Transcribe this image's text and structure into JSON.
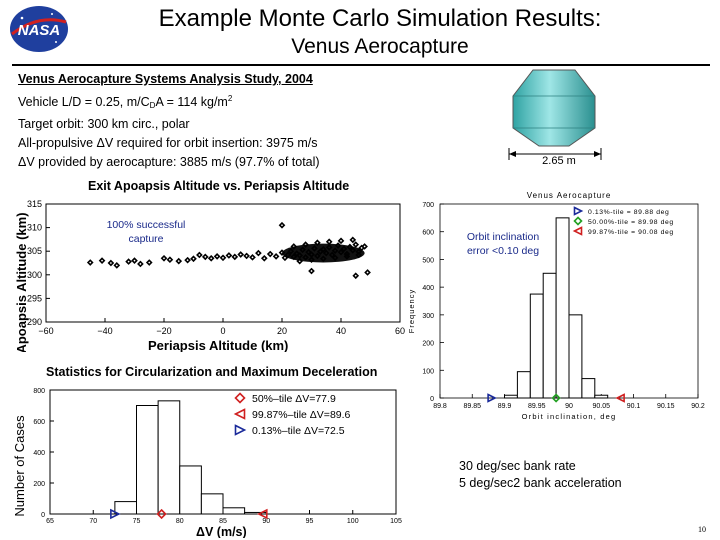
{
  "slide": {
    "title": "Example Monte Carlo Simulation Results:",
    "subtitle": "Venus Aerocapture",
    "logo_text": "NASA",
    "page_number": "10"
  },
  "study": {
    "heading": "Venus Aerocapture Systems Analysis Study, 2004",
    "line1_prefix": "Vehicle L/D = 0.25, m/C",
    "line1_sub": "D",
    "line1_mid": "A = 114 kg/m",
    "line1_sup": "2",
    "line2": "Target orbit: 300 km circ., polar",
    "line3": "All-propulsive ΔV required for orbit insertion: 3975 m/s",
    "line4": "ΔV provided by aerocapture: 3885 m/s (97.7% of total)"
  },
  "vehicle": {
    "dimension_label": "2.65 m"
  },
  "bank_note": {
    "line1": "30 deg/sec bank rate",
    "line2": "5 deg/sec2 bank acceleration"
  },
  "chart_data": [
    {
      "type": "scatter",
      "title": "Exit Apoapsis Altitude vs. Periapsis Altitude",
      "xlabel": "Periapsis Altitude (km)",
      "ylabel": "Apoapsis Altitude (km)",
      "xlim": [
        -60,
        60
      ],
      "ylim": [
        290,
        315
      ],
      "xticks": [
        "−60",
        "−40",
        "−20",
        "0",
        "20",
        "40",
        "60"
      ],
      "yticks": [
        "290",
        "295",
        "300",
        "305",
        "310",
        "315"
      ],
      "annotation": "100% successful capture",
      "points": [
        [
          -38,
          302.5
        ],
        [
          -36,
          302
        ],
        [
          -32,
          302.8
        ],
        [
          -30,
          303
        ],
        [
          -28,
          302.3
        ],
        [
          -25,
          302.6
        ],
        [
          -20,
          303.5
        ],
        [
          -18,
          303.2
        ],
        [
          -15,
          302.9
        ],
        [
          -12,
          303.1
        ],
        [
          -10,
          303.4
        ],
        [
          -8,
          304.2
        ],
        [
          -6,
          303.8
        ],
        [
          -4,
          303.5
        ],
        [
          -2,
          303.9
        ],
        [
          0,
          303.6
        ],
        [
          2,
          304.1
        ],
        [
          4,
          303.8
        ],
        [
          6,
          304.3
        ],
        [
          8,
          304.0
        ],
        [
          10,
          303.7
        ],
        [
          12,
          304.6
        ],
        [
          14,
          303.5
        ],
        [
          16,
          304.4
        ],
        [
          18,
          303.9
        ],
        [
          20,
          304.7
        ],
        [
          21,
          303.6
        ],
        [
          22,
          304.2
        ],
        [
          23,
          305.0
        ],
        [
          24,
          303.8
        ],
        [
          25,
          304.5
        ],
        [
          26,
          304.1
        ],
        [
          27,
          305.3
        ],
        [
          28,
          303.7
        ],
        [
          29,
          304.8
        ],
        [
          30,
          304.3
        ],
        [
          31,
          305.6
        ],
        [
          32,
          304.0
        ],
        [
          33,
          304.9
        ],
        [
          34,
          305.4
        ],
        [
          35,
          304.6
        ],
        [
          36,
          305.8
        ],
        [
          37,
          304.2
        ],
        [
          38,
          305.1
        ],
        [
          39,
          306.2
        ],
        [
          40,
          304.8
        ],
        [
          41,
          305.5
        ],
        [
          42,
          304.4
        ],
        [
          43,
          305.9
        ],
        [
          44,
          305.2
        ],
        [
          45,
          306.4
        ],
        [
          46,
          304.9
        ],
        [
          47,
          305.7
        ],
        [
          48,
          306.0
        ],
        [
          26,
          302.9
        ],
        [
          30,
          303.2
        ],
        [
          34,
          303.4
        ],
        [
          38,
          303.6
        ],
        [
          42,
          303.9
        ],
        [
          46,
          304.2
        ],
        [
          24,
          306.0
        ],
        [
          28,
          306.4
        ],
        [
          32,
          306.8
        ],
        [
          36,
          307.0
        ],
        [
          40,
          307.2
        ],
        [
          44,
          307.4
        ],
        [
          -41,
          303.0
        ],
        [
          -45,
          302.6
        ],
        [
          20,
          310.5
        ],
        [
          45,
          299.8
        ],
        [
          30,
          300.8
        ],
        [
          49,
          300.5
        ]
      ]
    },
    {
      "type": "bar",
      "title": "Venus Aerocapture",
      "xlabel": "Orbit inclination, deg",
      "ylabel": "Frequency",
      "xlim": [
        89.8,
        90.2
      ],
      "ylim": [
        0,
        700
      ],
      "xticks": [
        "89.8",
        "89.85",
        "89.9",
        "89.95",
        "90",
        "90.05",
        "90.1",
        "90.15",
        "90.2"
      ],
      "yticks": [
        "0",
        "100",
        "200",
        "300",
        "400",
        "500",
        "600",
        "700"
      ],
      "annotation": "Orbit inclination error <0.10 deg",
      "bin_edges": [
        89.9,
        89.92,
        89.94,
        89.96,
        89.98,
        90.0,
        90.02,
        90.04,
        90.06
      ],
      "values": [
        10,
        95,
        375,
        450,
        650,
        300,
        70,
        10
      ],
      "legend": [
        {
          "label": "0.13%-tile = 89.88 deg",
          "marker": "right-triangle",
          "color": "#1a2a9a"
        },
        {
          "label": "50.00%-tile = 89.98 deg",
          "marker": "diamond",
          "color": "#22a022"
        },
        {
          "label": "99.87%-tile = 90.08 deg",
          "marker": "left-triangle",
          "color": "#d02020"
        }
      ],
      "percentile_values": [
        89.88,
        89.98,
        90.08
      ]
    },
    {
      "type": "bar",
      "title": "Statistics for Circularization and Maximum Deceleration",
      "xlabel": "ΔV (m/s)",
      "ylabel": "Number of Cases",
      "xlim": [
        65,
        105
      ],
      "ylim": [
        0,
        800
      ],
      "xticks": [
        "65",
        "70",
        "75",
        "80",
        "85",
        "90",
        "95",
        "100",
        "105"
      ],
      "yticks": [
        "0",
        "200",
        "400",
        "600",
        "800"
      ],
      "bin_edges": [
        72.5,
        75,
        77.5,
        80,
        82.5,
        85,
        87.5,
        90
      ],
      "values": [
        80,
        700,
        730,
        310,
        130,
        40,
        10
      ],
      "legend": [
        {
          "label": "50%–tile ΔV=77.9",
          "marker": "diamond",
          "color": "#d02020"
        },
        {
          "label": "99.87%–tile ΔV=89.6",
          "marker": "left-triangle",
          "color": "#d02020"
        },
        {
          "label": "0.13%–tile ΔV=72.5",
          "marker": "right-triangle",
          "color": "#1a2a9a"
        }
      ],
      "percentile_values": [
        77.9,
        89.6,
        72.5
      ]
    }
  ]
}
